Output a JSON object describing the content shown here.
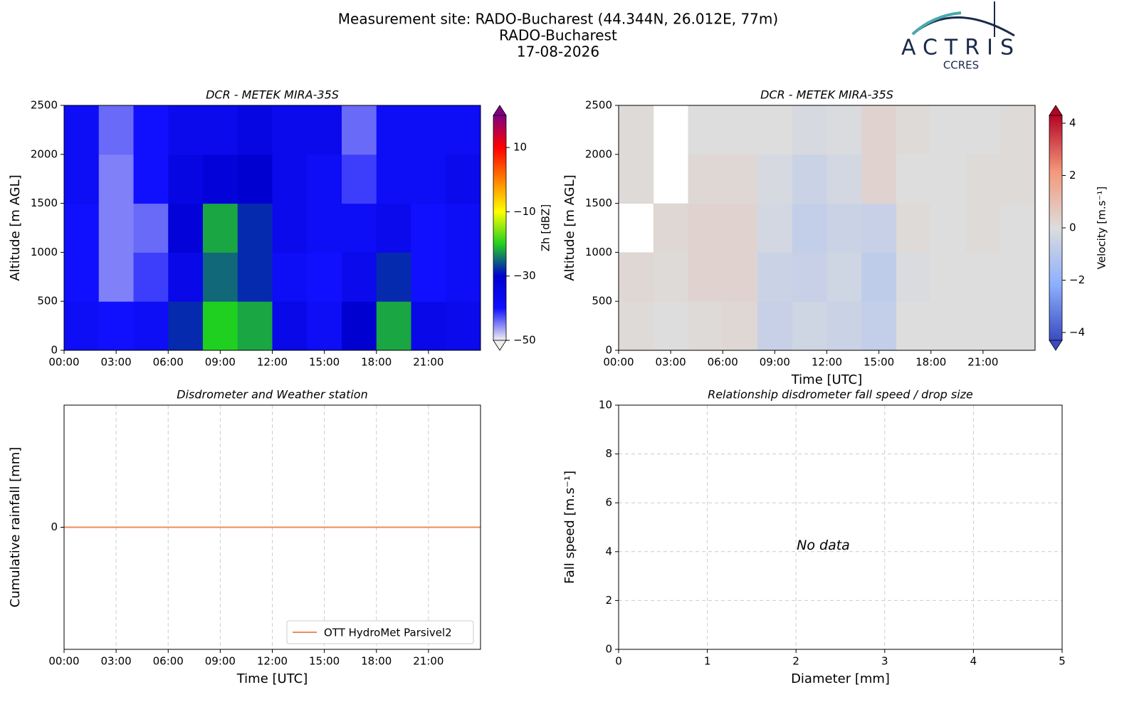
{
  "header": {
    "title": [
      "Measurement site: RADO-Bucharest (44.344N, 26.012E, 77m)",
      "RADO-Bucharest",
      "17-08-2026"
    ],
    "logo": "ACTRIS",
    "logo_sub": "CCRES"
  },
  "chart_data": [
    {
      "type": "heatmap",
      "title": "DCR - METEK MIRA-35S",
      "ylabel": "Altitude [m AGL]",
      "xbins": [
        0,
        2,
        4,
        6,
        8,
        10,
        12,
        14,
        16,
        18,
        20,
        22,
        24
      ],
      "ybins": [
        0,
        500,
        1000,
        1500,
        2000,
        2500
      ],
      "z": [
        [
          -38,
          -40,
          -38,
          -28,
          -20,
          -22,
          -35,
          -38,
          -30,
          -22,
          -35,
          -36
        ],
        [
          -40,
          -45,
          -42,
          -35,
          -25,
          -28,
          -38,
          -40,
          -36,
          -28,
          -40,
          -38
        ],
        [
          -40,
          -45,
          -44,
          -32,
          -22,
          -28,
          -36,
          -38,
          -38,
          -36,
          -40,
          -38
        ],
        [
          -38,
          -45,
          -40,
          -34,
          -32,
          -30,
          -36,
          -38,
          -42,
          -38,
          -38,
          -36
        ],
        [
          -38,
          -44,
          -40,
          -36,
          -36,
          -34,
          -36,
          -36,
          -44,
          -38,
          -38,
          -38
        ]
      ],
      "xlim": [
        0,
        24
      ],
      "xticks": [
        {
          "value": 0,
          "label": "00:00"
        },
        {
          "value": 3,
          "label": "03:00"
        },
        {
          "value": 6,
          "label": "06:00"
        },
        {
          "value": 9,
          "label": "09:00"
        },
        {
          "value": 12,
          "label": "12:00"
        },
        {
          "value": 15,
          "label": "15:00"
        },
        {
          "value": 18,
          "label": "18:00"
        },
        {
          "value": 21,
          "label": "21:00"
        }
      ],
      "ylim": [
        0,
        2500
      ],
      "yticks": [
        0,
        500,
        1000,
        1500,
        2000,
        2500
      ],
      "zlim": [
        -50,
        20
      ],
      "zticks": [
        {
          "value": -50,
          "label": "−50"
        },
        {
          "value": -30,
          "label": "−30"
        },
        {
          "value": -10,
          "label": "−10"
        },
        10
      ],
      "zlabel": "Zh [dBZ]",
      "colormap": [
        "#f0f0f0",
        "#1010ff",
        "#0000d0",
        "#20d020",
        "#ffff00",
        "#ff8000",
        "#ff0000",
        "#800080"
      ],
      "grid": false
    },
    {
      "type": "heatmap",
      "title": "DCR - METEK MIRA-35S",
      "ylabel": "Altitude [m AGL]",
      "xlabel": "Time [UTC]",
      "xbins": [
        0,
        2,
        4,
        6,
        8,
        10,
        12,
        14,
        16,
        18,
        20,
        22,
        24
      ],
      "ybins": [
        0,
        500,
        1000,
        1500,
        2000,
        2500
      ],
      "z": [
        [
          0.1,
          0,
          0.1,
          0.2,
          -0.6,
          -0.4,
          -0.5,
          -0.7,
          0,
          0,
          0,
          0
        ],
        [
          0.2,
          0.1,
          0.3,
          0.3,
          -0.5,
          -0.6,
          -0.4,
          -0.8,
          -0.1,
          0,
          0,
          0
        ],
        [
          null,
          0.2,
          0.3,
          0.3,
          -0.3,
          -0.7,
          -0.5,
          -0.6,
          0.1,
          0,
          0.1,
          0
        ],
        [
          0.1,
          null,
          0.2,
          0.2,
          -0.2,
          -0.5,
          -0.3,
          0.3,
          0,
          0,
          0.1,
          0.1
        ],
        [
          0.1,
          null,
          0,
          0,
          0,
          -0.2,
          -0.1,
          0.3,
          0.1,
          0,
          0,
          0.1
        ]
      ],
      "xlim": [
        0,
        24
      ],
      "xticks": [
        {
          "value": 0,
          "label": "00:00"
        },
        {
          "value": 3,
          "label": "03:00"
        },
        {
          "value": 6,
          "label": "06:00"
        },
        {
          "value": 9,
          "label": "09:00"
        },
        {
          "value": 12,
          "label": "12:00"
        },
        {
          "value": 15,
          "label": "15:00"
        },
        {
          "value": 18,
          "label": "18:00"
        },
        {
          "value": 21,
          "label": "21:00"
        }
      ],
      "ylim": [
        0,
        2500
      ],
      "yticks": [
        0,
        500,
        1000,
        1500,
        2000,
        2500
      ],
      "zlim": [
        -4.3,
        4.3
      ],
      "zticks": [
        {
          "value": -4,
          "label": "−4"
        },
        {
          "value": -2,
          "label": "−2"
        },
        0,
        2,
        4
      ],
      "zlabel": "Velocity [m.s⁻¹]",
      "colormap": [
        "#3b4cc0",
        "#8db0fe",
        "#dddddd",
        "#f4987a",
        "#b40426"
      ],
      "grid": false
    },
    {
      "type": "line",
      "title": "Disdrometer and Weather station",
      "ylabel": "Cumulative rainfall [mm]",
      "xlabel": "Time [UTC]",
      "x": [
        0,
        24
      ],
      "series": [
        {
          "name": "OTT HydroMet Parsivel2",
          "color": "#f08a5d",
          "values": [
            0,
            0
          ]
        }
      ],
      "xlim": [
        0,
        24
      ],
      "xticks": [
        {
          "value": 0,
          "label": "00:00"
        },
        {
          "value": 3,
          "label": "03:00"
        },
        {
          "value": 6,
          "label": "06:00"
        },
        {
          "value": 9,
          "label": "09:00"
        },
        {
          "value": 12,
          "label": "12:00"
        },
        {
          "value": 15,
          "label": "15:00"
        },
        {
          "value": 18,
          "label": "18:00"
        },
        {
          "value": 21,
          "label": "21:00"
        }
      ],
      "ylim": [
        -1,
        1
      ],
      "yticks": [
        0
      ],
      "grid": true,
      "grid_axis": "x",
      "legend": "lower right"
    },
    {
      "type": "scatter",
      "title": "Relationship disdrometer fall speed / drop size",
      "ylabel": "Fall speed [m.s⁻¹]",
      "xlabel": "Diameter [mm]",
      "annotation": "No data",
      "xlim": [
        0,
        5
      ],
      "xticks": [
        0,
        1,
        2,
        3,
        4,
        5
      ],
      "ylim": [
        0,
        10
      ],
      "yticks": [
        0,
        2,
        4,
        6,
        8,
        10
      ],
      "grid": true,
      "grid_axis": "both"
    }
  ]
}
